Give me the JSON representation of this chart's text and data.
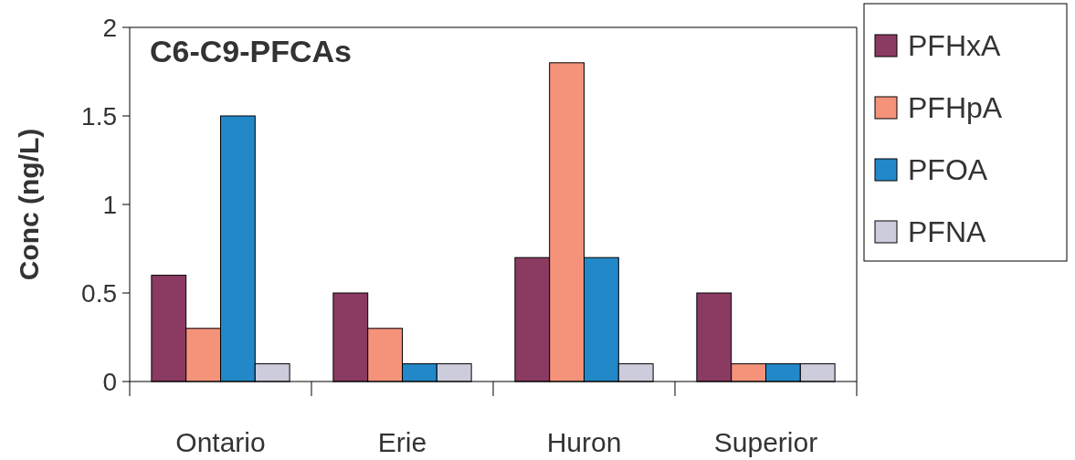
{
  "chart_data": {
    "type": "bar",
    "title": "C6-C9-PFCAs",
    "ylabel": "Conc (ng/L)",
    "categories": [
      "Ontario",
      "Erie",
      "Huron",
      "Superior"
    ],
    "series": [
      {
        "name": "PFHxA",
        "color": "#8b3a62",
        "values": [
          0.6,
          0.5,
          0.7,
          0.5
        ]
      },
      {
        "name": "PFHpA",
        "color": "#f4927a",
        "values": [
          0.3,
          0.3,
          1.8,
          0.1
        ]
      },
      {
        "name": "PFOA",
        "color": "#2288c8",
        "values": [
          1.5,
          0.1,
          0.7,
          0.1
        ]
      },
      {
        "name": "PFNA",
        "color": "#ccccdd",
        "values": [
          0.1,
          0.1,
          0.1,
          0.1
        ]
      }
    ],
    "ylim": [
      0,
      2
    ],
    "yticks": [
      0,
      0.5,
      1,
      1.5,
      2
    ],
    "grid": false,
    "legend": "right"
  }
}
